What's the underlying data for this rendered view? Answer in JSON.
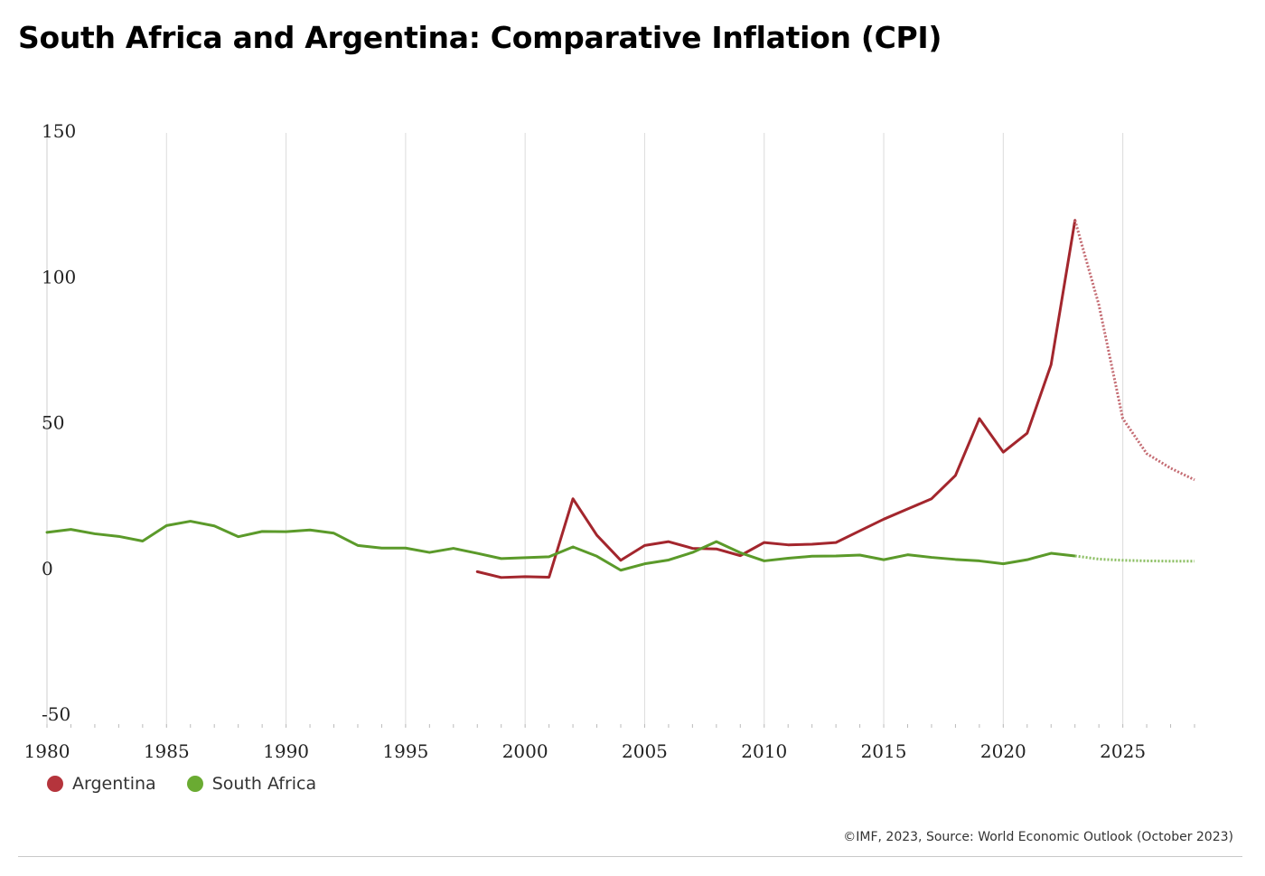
{
  "title": "South Africa and Argentina: Comparative Inflation (CPI)",
  "source": "©IMF, 2023, Source: World Economic Outlook (October 2023)",
  "chart_data": {
    "type": "line",
    "title": "South Africa and Argentina: Comparative Inflation (CPI)",
    "xlabel": "",
    "ylabel": "",
    "xlim": [
      1980,
      2028
    ],
    "ylim": [
      -50,
      150
    ],
    "x_ticks": [
      "1980",
      "1985",
      "1990",
      "1995",
      "2000",
      "2005",
      "2010",
      "2015",
      "2020",
      "2025"
    ],
    "y_ticks": [
      "150",
      "100",
      "50",
      "0",
      "-50"
    ],
    "grid": "vertical",
    "legend_position": "bottom-left",
    "series": [
      {
        "name": "Argentina",
        "color": "#a3262d",
        "projection_color": "#c46b72",
        "actual": {
          "x": [
            1998,
            1999,
            2000,
            2001,
            2002,
            2003,
            2004,
            2005,
            2006,
            2007,
            2008,
            2009,
            2010,
            2011,
            2012,
            2013,
            2014,
            2015,
            2016,
            2017,
            2018,
            2019,
            2020,
            2021,
            2022,
            2023
          ],
          "y": [
            -0.5,
            -2.5,
            -2.2,
            -2.4,
            24.5,
            12.0,
            3.4,
            8.5,
            9.8,
            7.5,
            7.3,
            5.0,
            9.5,
            8.7,
            8.9,
            9.5,
            13.5,
            17.5,
            21.0,
            24.5,
            32.5,
            52.0,
            40.5,
            47.0,
            70.5,
            120.0
          ]
        },
        "projection": {
          "x": [
            2023,
            2024,
            2025,
            2026,
            2027,
            2028
          ],
          "y": [
            120.0,
            91.0,
            52.0,
            40.0,
            35.0,
            31.0
          ]
        }
      },
      {
        "name": "South Africa",
        "color": "#5b9a2a",
        "projection_color": "#8cbf63",
        "actual": {
          "x": [
            1980,
            1981,
            1982,
            1983,
            1984,
            1985,
            1986,
            1987,
            1988,
            1989,
            1990,
            1991,
            1992,
            1993,
            1994,
            1995,
            1996,
            1997,
            1998,
            1999,
            2000,
            2001,
            2002,
            2003,
            2004,
            2005,
            2006,
            2007,
            2008,
            2009,
            2010,
            2011,
            2012,
            2013,
            2014,
            2015,
            2016,
            2017,
            2018,
            2019,
            2020,
            2021,
            2022,
            2023
          ],
          "y": [
            13.0,
            14.0,
            12.5,
            11.6,
            10.0,
            15.3,
            16.8,
            15.2,
            11.5,
            13.3,
            13.2,
            13.8,
            12.7,
            8.5,
            7.6,
            7.6,
            6.1,
            7.5,
            5.8,
            4.0,
            4.3,
            4.6,
            8.0,
            4.8,
            0.0,
            2.2,
            3.5,
            6.1,
            9.8,
            6.0,
            3.2,
            4.1,
            4.8,
            4.9,
            5.2,
            3.6,
            5.3,
            4.4,
            3.7,
            3.2,
            2.2,
            3.6,
            5.8,
            4.9
          ]
        },
        "projection": {
          "x": [
            2023,
            2024,
            2025,
            2026,
            2027,
            2028
          ],
          "y": [
            4.9,
            3.8,
            3.4,
            3.2,
            3.1,
            3.1
          ]
        }
      }
    ]
  }
}
